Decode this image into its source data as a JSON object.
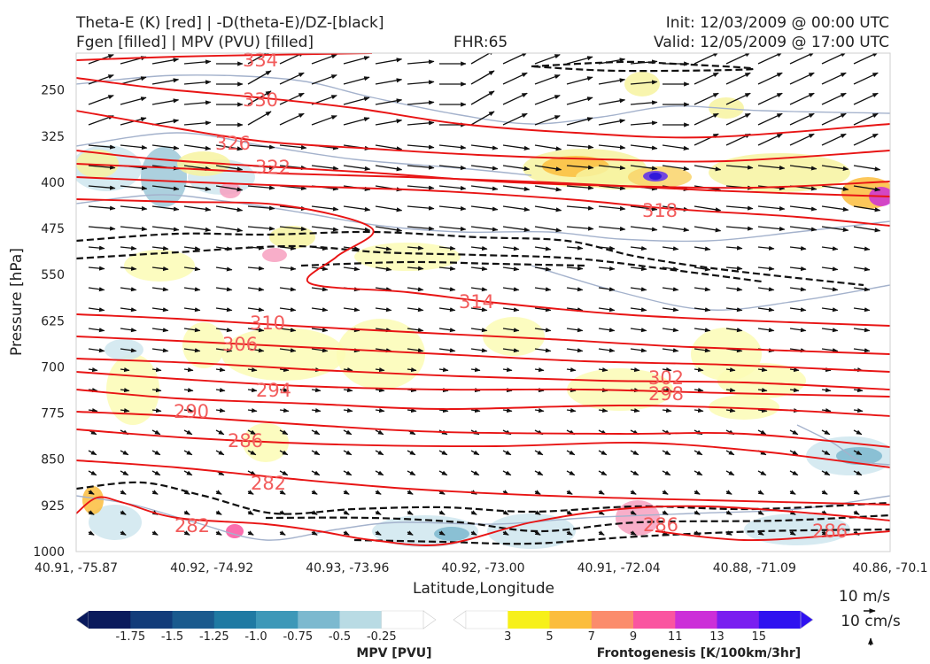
{
  "header": {
    "title_line1": "Theta-E (K) [red] | -D(theta-E)/DZ-[black]",
    "title_line2": "Fgen [filled] | MPV (PVU) [filled]",
    "fhr": "FHR:65",
    "init": "Init: 12/03/2009 @ 00:00 UTC",
    "valid": "Valid: 12/05/2009 @ 17:00 UTC"
  },
  "chart_data": {
    "type": "cross-section",
    "xlabel": "Latitude,Longitude",
    "ylabel": "Pressure [hPa]",
    "x_ticks": [
      "40.91, -75.87",
      "40.92, -74.92",
      "40.93, -73.96",
      "40.92, -73.00",
      "40.91, -72.04",
      "40.88, -71.09",
      "40.86, -70.1"
    ],
    "y_ticks": [
      250,
      325,
      400,
      475,
      550,
      625,
      700,
      775,
      850,
      925,
      1000
    ],
    "ylim": [
      1000,
      190
    ],
    "theta_e_labels": [
      "334",
      "330",
      "326",
      "322",
      "318",
      "314",
      "310",
      "306",
      "302",
      "298",
      "294",
      "290",
      "286",
      "282",
      "282",
      "286",
      "286"
    ],
    "mpv_colorbar": {
      "label": "MPV [PVU]",
      "ticks": [
        "-1.75",
        "-1.5",
        "-1.25",
        "-1.0",
        "-0.75",
        "-0.5",
        "-0.25"
      ],
      "colors": [
        "#0a1a5c",
        "#123c7a",
        "#1a5a8e",
        "#1f7aa3",
        "#3d98b8",
        "#7cb9cf",
        "#b9dbe4",
        "#ffffff"
      ]
    },
    "fgen_colorbar": {
      "label": "Frontogenesis [K/100km/3hr]",
      "ticks": [
        "3",
        "5",
        "7",
        "9",
        "11",
        "13",
        "15"
      ],
      "colors": [
        "#ffffff",
        "#f7f01a",
        "#fbbd3d",
        "#fb8c6c",
        "#fa55a0",
        "#cc2fd8",
        "#7a1ef0",
        "#2f12f0"
      ]
    },
    "quiver_keys": [
      "10 m/s",
      "10 cm/s"
    ]
  }
}
